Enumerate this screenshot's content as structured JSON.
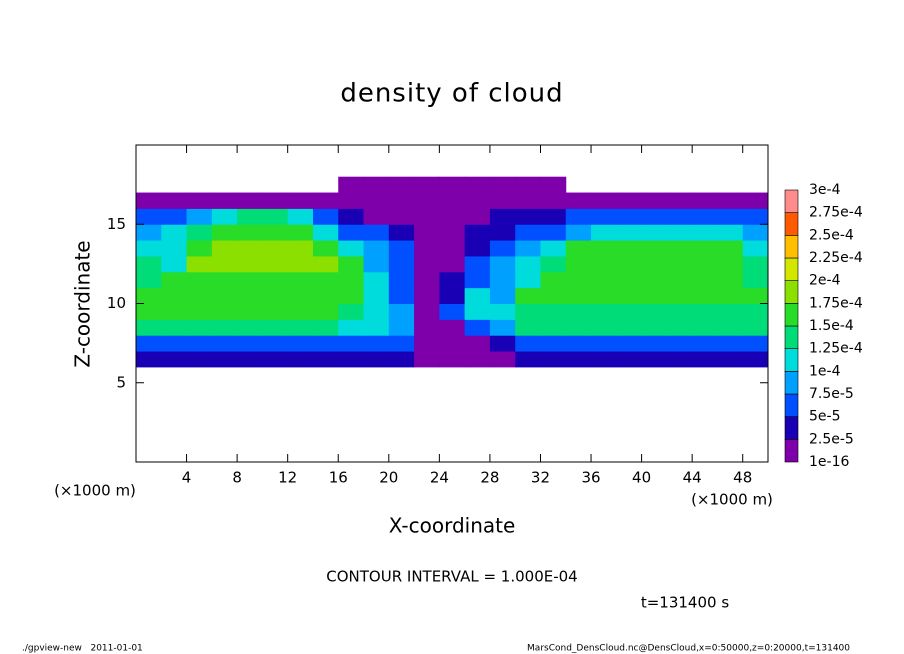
{
  "chart_data": {
    "type": "heatmap",
    "title": "density of cloud",
    "xlabel": "X-coordinate",
    "ylabel": "Z-coordinate",
    "xunit": "(×1000 m)",
    "xlim": [
      0,
      50
    ],
    "ylim": [
      0,
      20
    ],
    "xticks": [
      4,
      8,
      12,
      16,
      20,
      24,
      28,
      32,
      36,
      40,
      44,
      48
    ],
    "yticks": [
      5,
      10,
      15
    ],
    "x": [
      0,
      2,
      4,
      6,
      8,
      10,
      12,
      14,
      16,
      18,
      20,
      22,
      24,
      26,
      28,
      30,
      32,
      34,
      36,
      38,
      40,
      42,
      44,
      46,
      48,
      50
    ],
    "z": [
      6,
      7,
      8,
      9,
      10,
      11,
      12,
      13,
      14,
      15,
      16,
      17,
      18
    ],
    "values": [
      [
        3e-05,
        3e-05,
        3e-05,
        3e-05,
        3e-05,
        3e-05,
        3e-05,
        3e-05,
        3e-05,
        3e-05,
        3e-05,
        1e-16,
        1e-16,
        1e-16,
        1e-16,
        3e-05,
        3e-05,
        3e-05,
        3e-05,
        3e-05,
        3e-05,
        3e-05,
        3e-05,
        3e-05,
        3e-05
      ],
      [
        6e-05,
        6e-05,
        6e-05,
        6e-05,
        6e-05,
        6e-05,
        6e-05,
        6e-05,
        6e-05,
        6e-05,
        6e-05,
        1e-16,
        1e-16,
        1e-16,
        3e-05,
        6e-05,
        6e-05,
        6e-05,
        6e-05,
        6e-05,
        6e-05,
        6e-05,
        6e-05,
        6e-05,
        6e-05
      ],
      [
        0.00013,
        0.00013,
        0.00013,
        0.00013,
        0.00013,
        0.00013,
        0.00013,
        0.00013,
        0.00012,
        0.00011,
        9e-05,
        1e-16,
        1e-16,
        5e-05,
        8e-05,
        0.00013,
        0.00013,
        0.00013,
        0.00013,
        0.00013,
        0.00013,
        0.00013,
        0.00013,
        0.00013,
        0.00013
      ],
      [
        0.00015,
        0.00015,
        0.00015,
        0.00015,
        0.00015,
        0.00015,
        0.00015,
        0.00015,
        0.00014,
        0.00012,
        8e-05,
        1e-16,
        6e-05,
        0.00012,
        0.0001,
        0.00014,
        0.00014,
        0.00014,
        0.00014,
        0.00014,
        0.00014,
        0.00014,
        0.00014,
        0.00014,
        0.00014
      ],
      [
        0.00016,
        0.00016,
        0.00016,
        0.00016,
        0.00016,
        0.00016,
        0.00016,
        0.00016,
        0.00015,
        0.00011,
        6e-05,
        1e-16,
        4e-05,
        0.0001,
        8e-05,
        0.00015,
        0.00015,
        0.00015,
        0.00015,
        0.00015,
        0.00015,
        0.00015,
        0.00015,
        0.00015,
        0.00015
      ],
      [
        0.00014,
        0.00017,
        0.00017,
        0.00017,
        0.00017,
        0.00017,
        0.00017,
        0.00017,
        0.00016,
        0.0001,
        6e-05,
        1e-16,
        3e-05,
        7e-05,
        9e-05,
        0.00012,
        0.00016,
        0.00016,
        0.00016,
        0.00016,
        0.00016,
        0.00016,
        0.00016,
        0.00016,
        0.00014
      ],
      [
        0.00013,
        0.00012,
        0.00018,
        0.00018,
        0.00018,
        0.00018,
        0.00018,
        0.00018,
        0.00015,
        9e-05,
        5e-05,
        1e-16,
        1e-16,
        5e-05,
        8e-05,
        0.0001,
        0.00013,
        0.00017,
        0.00017,
        0.00017,
        0.00017,
        0.00017,
        0.00017,
        0.00015,
        0.00013
      ],
      [
        0.00011,
        0.0001,
        0.00015,
        0.00018,
        0.00018,
        0.00018,
        0.00018,
        0.00016,
        0.00011,
        8e-05,
        5e-05,
        1e-16,
        1e-16,
        4e-05,
        6e-05,
        8e-05,
        0.0001,
        0.00015,
        0.00015,
        0.00015,
        0.00015,
        0.00015,
        0.00015,
        0.00015,
        0.00012
      ],
      [
        9e-05,
        0.0001,
        0.00014,
        0.00016,
        0.00016,
        0.00016,
        0.00016,
        0.00012,
        7e-05,
        6e-05,
        4e-05,
        1e-16,
        1e-16,
        3e-05,
        4e-05,
        5e-05,
        6e-05,
        8e-05,
        0.00011,
        0.00011,
        0.00011,
        0.00011,
        0.00011,
        0.0001,
        9e-05
      ],
      [
        6e-05,
        6e-05,
        8e-05,
        0.00012,
        0.00013,
        0.00013,
        0.00011,
        6e-05,
        3e-05,
        1e-16,
        1e-16,
        1e-16,
        1e-16,
        1e-16,
        3e-05,
        3e-05,
        4e-05,
        5e-05,
        5e-05,
        6e-05,
        6e-05,
        7e-05,
        7e-05,
        7e-05,
        6e-05
      ],
      [
        1e-16,
        1e-16,
        1e-16,
        1e-16,
        1e-16,
        1e-16,
        1e-16,
        1e-16,
        1e-16,
        1e-16,
        1e-16,
        1e-16,
        1e-16,
        1e-16,
        1e-16,
        1e-16,
        1e-16,
        1e-16,
        1e-16,
        1e-16,
        1e-16,
        1e-16,
        1e-16,
        1e-16,
        1e-16
      ],
      [
        null,
        null,
        null,
        null,
        null,
        null,
        null,
        null,
        1e-16,
        1e-16,
        1e-16,
        1e-16,
        1e-16,
        1e-16,
        1e-16,
        1e-16,
        1e-16,
        null,
        null,
        null,
        null,
        null,
        null,
        null,
        null
      ]
    ],
    "colorbar": {
      "ticks": [
        {
          "value": 1e-16,
          "label": "1e-16"
        },
        {
          "value": 2.5e-05,
          "label": "2.5e-5"
        },
        {
          "value": 5e-05,
          "label": "5e-5"
        },
        {
          "value": 7.5e-05,
          "label": "7.5e-5"
        },
        {
          "value": 0.0001,
          "label": "1e-4"
        },
        {
          "value": 0.000125,
          "label": "1.25e-4"
        },
        {
          "value": 0.00015,
          "label": "1.5e-4"
        },
        {
          "value": 0.000175,
          "label": "1.75e-4"
        },
        {
          "value": 0.0002,
          "label": "2e-4"
        },
        {
          "value": 0.000225,
          "label": "2.25e-4"
        },
        {
          "value": 0.00025,
          "label": "2.5e-4"
        },
        {
          "value": 0.000275,
          "label": "2.75e-4"
        },
        {
          "value": 0.0003,
          "label": "3e-4"
        }
      ],
      "colors": [
        "#7d00aa",
        "#1a00b4",
        "#0050ff",
        "#00a0ff",
        "#00dcdc",
        "#00dc78",
        "#28dc28",
        "#8ce000",
        "#d2e600",
        "#ffbe00",
        "#ff5a00",
        "#ff8c8c"
      ]
    },
    "contour_note": "CONTOUR INTERVAL = 1.000E-04",
    "time_note": "t=131400 s",
    "footer_left": "./gpview-new   2011-01-01",
    "footer_right": "MarsCond_DensCloud.nc@DensCloud,x=0:50000,z=0:20000,t=131400"
  }
}
